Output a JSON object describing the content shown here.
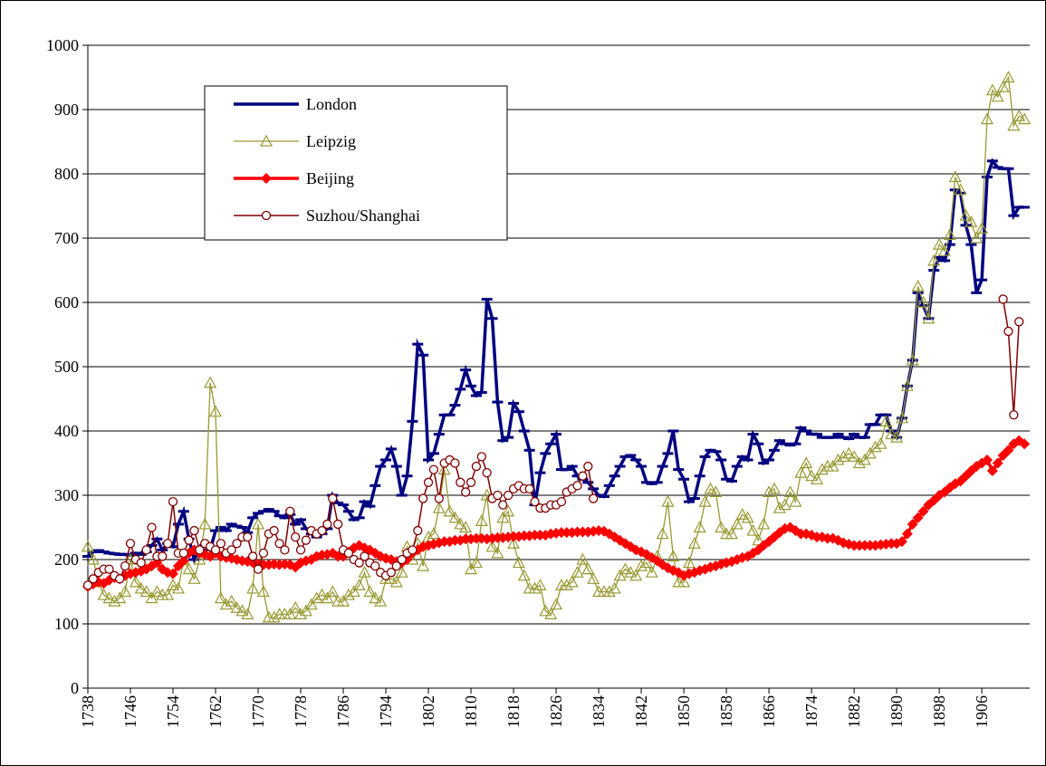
{
  "chart_data": {
    "type": "line",
    "x": [
      1738,
      1739,
      1740,
      1741,
      1742,
      1743,
      1744,
      1745,
      1746,
      1747,
      1748,
      1749,
      1750,
      1751,
      1752,
      1753,
      1754,
      1755,
      1756,
      1757,
      1758,
      1759,
      1760,
      1761,
      1762,
      1763,
      1764,
      1765,
      1766,
      1767,
      1768,
      1769,
      1770,
      1771,
      1772,
      1773,
      1774,
      1775,
      1776,
      1777,
      1778,
      1779,
      1780,
      1781,
      1782,
      1783,
      1784,
      1785,
      1786,
      1787,
      1788,
      1789,
      1790,
      1791,
      1792,
      1793,
      1794,
      1795,
      1796,
      1797,
      1798,
      1799,
      1800,
      1801,
      1802,
      1803,
      1804,
      1805,
      1806,
      1807,
      1808,
      1809,
      1810,
      1811,
      1812,
      1813,
      1814,
      1815,
      1816,
      1817,
      1818,
      1819,
      1820,
      1821,
      1822,
      1823,
      1824,
      1825,
      1826,
      1827,
      1828,
      1829,
      1830,
      1831,
      1832,
      1833,
      1834,
      1835,
      1836,
      1837,
      1838,
      1839,
      1840,
      1841,
      1842,
      1843,
      1844,
      1845,
      1846,
      1847,
      1848,
      1849,
      1850,
      1851,
      1852,
      1853,
      1854,
      1855,
      1856,
      1857,
      1858,
      1859,
      1860,
      1861,
      1862,
      1863,
      1864,
      1865,
      1866,
      1867,
      1868,
      1869,
      1870,
      1871,
      1872,
      1873,
      1874,
      1875,
      1876,
      1877,
      1878,
      1879,
      1880,
      1881,
      1882,
      1883,
      1884,
      1885,
      1886,
      1887,
      1888,
      1889,
      1890,
      1891,
      1892,
      1893,
      1894,
      1895,
      1896,
      1897,
      1898,
      1899,
      1900,
      1901,
      1902,
      1903,
      1904,
      1905,
      1906,
      1907,
      1908,
      1909,
      1910,
      1911,
      1912,
      1913,
      1914
    ],
    "series": [
      {
        "name": "London",
        "color": "#000080",
        "marker": "dash",
        "values": [
          205,
          212,
          214,
          212,
          210,
          209,
          208,
          208,
          207,
          210,
          208,
          212,
          222,
          232,
          215,
          225,
          220,
          255,
          275,
          232,
          200,
          215,
          222,
          215,
          245,
          250,
          245,
          255,
          252,
          250,
          242,
          265,
          272,
          275,
          278,
          275,
          268,
          265,
          270,
          255,
          262,
          248,
          240,
          235,
          240,
          248,
          300,
          288,
          285,
          275,
          262,
          265,
          290,
          283,
          315,
          345,
          355,
          372,
          345,
          300,
          330,
          415,
          535,
          518,
          355,
          365,
          395,
          425,
          425,
          440,
          465,
          495,
          470,
          455,
          460,
          605,
          575,
          445,
          385,
          390,
          443,
          430,
          400,
          370,
          285,
          335,
          365,
          380,
          395,
          340,
          340,
          345,
          330,
          325,
          320,
          310,
          300,
          298,
          315,
          330,
          345,
          360,
          362,
          355,
          345,
          320,
          318,
          320,
          345,
          365,
          400,
          340,
          325,
          290,
          295,
          330,
          360,
          370,
          368,
          355,
          325,
          322,
          345,
          360,
          355,
          395,
          380,
          350,
          355,
          370,
          385,
          380,
          378,
          380,
          405,
          400,
          395,
          395,
          390,
          390,
          390,
          395,
          390,
          388,
          395,
          390,
          390,
          410,
          410,
          425,
          425,
          400,
          390,
          420,
          470,
          510,
          615,
          595,
          575,
          650,
          670,
          665,
          690,
          775,
          770,
          720,
          690,
          615,
          635,
          795,
          820,
          810,
          808,
          808,
          735,
          748,
          748
        ]
      },
      {
        "name": "Leipzig",
        "color": "#999933",
        "marker": "triangle",
        "values": [
          220,
          200,
          165,
          145,
          140,
          135,
          140,
          150,
          200,
          165,
          155,
          150,
          140,
          150,
          145,
          145,
          160,
          155,
          200,
          185,
          170,
          200,
          255,
          475,
          430,
          140,
          130,
          135,
          125,
          120,
          115,
          155,
          255,
          150,
          110,
          110,
          115,
          115,
          115,
          125,
          115,
          120,
          130,
          140,
          145,
          140,
          150,
          135,
          135,
          145,
          150,
          160,
          180,
          150,
          140,
          135,
          170,
          170,
          165,
          180,
          220,
          200,
          225,
          190,
          235,
          240,
          280,
          340,
          275,
          265,
          255,
          250,
          185,
          195,
          260,
          300,
          220,
          210,
          265,
          275,
          225,
          195,
          175,
          155,
          155,
          160,
          120,
          115,
          130,
          160,
          160,
          165,
          180,
          200,
          185,
          170,
          150,
          150,
          150,
          155,
          175,
          185,
          180,
          175,
          190,
          195,
          180,
          205,
          240,
          290,
          205,
          165,
          165,
          195,
          225,
          250,
          290,
          310,
          305,
          250,
          240,
          240,
          255,
          270,
          265,
          245,
          230,
          255,
          305,
          310,
          280,
          285,
          305,
          290,
          335,
          350,
          330,
          325,
          340,
          345,
          345,
          355,
          360,
          365,
          360,
          350,
          355,
          365,
          375,
          380,
          415,
          395,
          390,
          420,
          470,
          510,
          625,
          600,
          575,
          665,
          690,
          680,
          705,
          795,
          775,
          735,
          725,
          700,
          715,
          885,
          930,
          920,
          935,
          950,
          875,
          890,
          885
        ]
      },
      {
        "name": "Beijing",
        "color": "#ff0000",
        "marker": "diamond",
        "values": [
          158,
          162,
          165,
          163,
          168,
          172,
          170,
          175,
          178,
          180,
          182,
          185,
          190,
          195,
          185,
          180,
          178,
          190,
          198,
          210,
          215,
          210,
          208,
          205,
          210,
          205,
          203,
          202,
          200,
          198,
          197,
          195,
          193,
          192,
          192,
          193,
          192,
          193,
          192,
          188,
          195,
          198,
          200,
          205,
          207,
          208,
          210,
          205,
          205,
          212,
          218,
          222,
          218,
          215,
          210,
          205,
          202,
          200,
          197,
          195,
          200,
          210,
          215,
          220,
          222,
          224,
          226,
          228,
          228,
          230,
          230,
          232,
          232,
          233,
          233,
          232,
          233,
          234,
          234,
          235,
          236,
          236,
          237,
          237,
          238,
          238,
          238,
          240,
          241,
          242,
          242,
          242,
          243,
          243,
          243,
          244,
          245,
          244,
          240,
          235,
          230,
          225,
          220,
          215,
          212,
          208,
          203,
          198,
          192,
          187,
          183,
          180,
          175,
          178,
          180,
          183,
          185,
          188,
          190,
          193,
          195,
          197,
          200,
          203,
          205,
          210,
          215,
          222,
          228,
          235,
          242,
          248,
          250,
          245,
          240,
          240,
          238,
          235,
          235,
          233,
          233,
          230,
          226,
          224,
          222,
          222,
          222,
          222,
          222,
          223,
          224,
          225,
          225,
          228,
          240,
          255,
          265,
          275,
          285,
          292,
          300,
          305,
          312,
          318,
          322,
          330,
          338,
          345,
          350,
          355,
          338,
          350,
          362,
          370,
          380,
          385,
          380
        ]
      },
      {
        "name": "Suzhou/Shanghai",
        "color": "#800000",
        "marker": "circle",
        "values": [
          160,
          170,
          180,
          185,
          185,
          175,
          170,
          190,
          225,
          200,
          195,
          215,
          250,
          205,
          205,
          225,
          290,
          210,
          210,
          230,
          245,
          215,
          225,
          220,
          215,
          225,
          210,
          215,
          225,
          235,
          235,
          205,
          185,
          210,
          240,
          245,
          225,
          215,
          275,
          235,
          215,
          230,
          245,
          240,
          245,
          255,
          295,
          255,
          215,
          210,
          200,
          195,
          205,
          195,
          190,
          180,
          175,
          180,
          190,
          200,
          210,
          215,
          245,
          295,
          320,
          340,
          295,
          350,
          355,
          350,
          320,
          305,
          320,
          345,
          360,
          335,
          295,
          300,
          285,
          300,
          310,
          315,
          310,
          310,
          290,
          280,
          280,
          285,
          285,
          290,
          305,
          310,
          315,
          330,
          345,
          295,
          null,
          null,
          null,
          null,
          null,
          null,
          null,
          null,
          null,
          null,
          null,
          null,
          null,
          null,
          null,
          null,
          null,
          null,
          null,
          null,
          null,
          null,
          null,
          null,
          null,
          null,
          null,
          null,
          null,
          null,
          null,
          null,
          null,
          null,
          null,
          null,
          null,
          null,
          null,
          null,
          null,
          null,
          null,
          null,
          null,
          null,
          null,
          null,
          null,
          null,
          null,
          null,
          null,
          null,
          null,
          null,
          null,
          null,
          null,
          null,
          null,
          null,
          null,
          null,
          null,
          null,
          null,
          null,
          null,
          null,
          null,
          null,
          null,
          null,
          null,
          null,
          605,
          555,
          425,
          570,
          null
        ]
      }
    ],
    "xlim": [
      1738,
      1915
    ],
    "xticks": [
      1738,
      1746,
      1754,
      1762,
      1770,
      1778,
      1786,
      1794,
      1802,
      1810,
      1818,
      1826,
      1834,
      1842,
      1850,
      1858,
      1866,
      1874,
      1882,
      1890,
      1898,
      1906
    ],
    "ylim": [
      0,
      1000
    ],
    "yticks": [
      0,
      100,
      200,
      300,
      400,
      500,
      600,
      700,
      800,
      900,
      1000
    ],
    "grid": true,
    "legend": "upper-left"
  }
}
